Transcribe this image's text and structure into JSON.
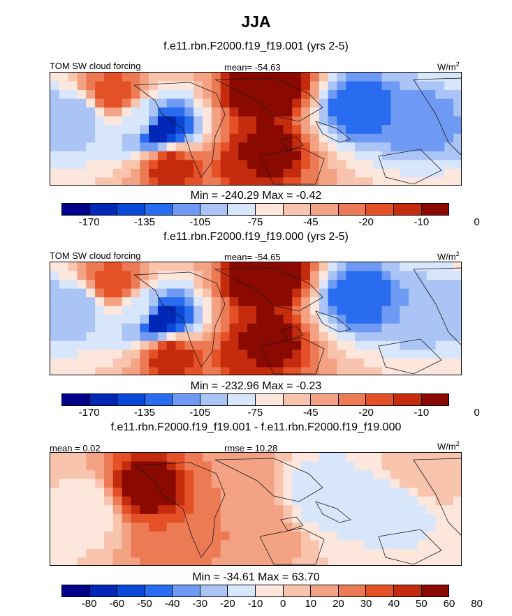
{
  "figure": {
    "title": "JJA",
    "subtitle": "f.e11.rbn.F2000.f19_f19.001 (yrs 2-5)"
  },
  "colors": {
    "ramp": [
      "#00008b",
      "#0027b5",
      "#0a48d8",
      "#2a6cf0",
      "#6f9af4",
      "#aac4f6",
      "#d8e6fb",
      "#fde6dc",
      "#f8c4ad",
      "#f3a283",
      "#ec7a55",
      "#e45126",
      "#c52b0d",
      "#8a0a02"
    ],
    "coast": "#1a1a1a"
  },
  "chart_data": [
    {
      "type": "heatmap",
      "panel": "top",
      "title": "f.e11.rbn.F2000.f19_f19.001 (yrs 2-5)",
      "left_label": "TOM SW cloud forcing",
      "center_label": "mean= -54.63",
      "units_base": "W/m",
      "units_exp": "2",
      "minmax_label": "Min = -240.29 Max =  -0.42",
      "min": -240.29,
      "max": -0.42,
      "mean": -54.63,
      "colorbar_levels": [
        -170,
        -155,
        -135,
        -120,
        -105,
        -90,
        -75,
        -60,
        -45,
        -30,
        -20,
        -15,
        -10,
        -5,
        0
      ],
      "tick_labels": [
        "-170",
        "-135",
        "-105",
        "-75",
        "-45",
        "-20",
        "-10",
        "0"
      ],
      "tick_levels": [
        -170,
        -135,
        -105,
        -75,
        -45,
        -20,
        -10,
        0
      ],
      "field": [
        {
          "lon": -125,
          "lat": 25,
          "value": -15
        },
        {
          "lon": -100,
          "lat": 5,
          "value": -75
        },
        {
          "lon": 0,
          "lat": 25,
          "value": -5
        },
        {
          "lon": 15,
          "lat": 30,
          "value": 0
        },
        {
          "lon": 90,
          "lat": 15,
          "value": -135
        },
        {
          "lon": 145,
          "lat": 5,
          "value": -120
        },
        {
          "lon": -160,
          "lat": 8,
          "value": -105
        },
        {
          "lon": -85,
          "lat": 0,
          "value": -170
        },
        {
          "lon": -75,
          "lat": -25,
          "value": -10
        },
        {
          "lon": 10,
          "lat": -15,
          "value": -5
        },
        {
          "lon": -5,
          "lat": -22,
          "value": -10
        }
      ]
    },
    {
      "type": "heatmap",
      "panel": "middle",
      "title": "f.e11.rbn.F2000.f19_f19.000 (yrs 2-5)",
      "left_label": "TOM SW cloud forcing",
      "center_label": "mean= -54.65",
      "units_base": "W/m",
      "units_exp": "2",
      "minmax_label": "Min = -232.96 Max =  -0.23",
      "min": -232.96,
      "max": -0.23,
      "mean": -54.65,
      "colorbar_levels": [
        -170,
        -155,
        -135,
        -120,
        -105,
        -90,
        -75,
        -60,
        -45,
        -30,
        -20,
        -15,
        -10,
        -5,
        0
      ],
      "tick_labels": [
        "-170",
        "-135",
        "-105",
        "-75",
        "-45",
        "-20",
        "-10",
        "0"
      ],
      "tick_levels": [
        -170,
        -135,
        -105,
        -75,
        -45,
        -20,
        -10,
        0
      ],
      "field": [
        {
          "lon": -125,
          "lat": 25,
          "value": -15
        },
        {
          "lon": -100,
          "lat": 5,
          "value": -75
        },
        {
          "lon": 0,
          "lat": 25,
          "value": -5
        },
        {
          "lon": 15,
          "lat": 30,
          "value": 0
        },
        {
          "lon": 90,
          "lat": 15,
          "value": -135
        },
        {
          "lon": 145,
          "lat": 5,
          "value": -105
        },
        {
          "lon": -160,
          "lat": 8,
          "value": -105
        },
        {
          "lon": -85,
          "lat": 0,
          "value": -170
        },
        {
          "lon": -75,
          "lat": -25,
          "value": -10
        },
        {
          "lon": 10,
          "lat": -15,
          "value": -5
        },
        {
          "lon": -5,
          "lat": -22,
          "value": -10
        }
      ]
    },
    {
      "type": "heatmap",
      "panel": "difference",
      "title": "f.e11.rbn.F2000.f19_f19.001 - f.e11.rbn.F2000.f19_f19.000",
      "left_label": "mean =   0.02",
      "center_label": "rmse =  10.28",
      "units_base": "W/m",
      "units_exp": "2",
      "minmax_label": "Min = -34.61 Max =  63.70",
      "min": -34.61,
      "max": 63.7,
      "mean": 0.02,
      "rmse": 10.28,
      "colorbar_levels": [
        -80,
        -60,
        -50,
        -40,
        -30,
        -20,
        -10,
        0,
        10,
        20,
        30,
        40,
        50,
        60,
        80
      ],
      "tick_labels": [
        "-80",
        "-60",
        "-50",
        "-40",
        "-30",
        "-20",
        "-10",
        "0",
        "10",
        "20",
        "30",
        "40",
        "50",
        "60",
        "80"
      ],
      "tick_levels": [
        -80,
        -60,
        -50,
        -40,
        -30,
        -20,
        -10,
        0,
        10,
        20,
        30,
        40,
        50,
        60,
        80
      ],
      "field": [
        {
          "lon": -95,
          "lat": 15,
          "value": 60
        },
        {
          "lon": -70,
          "lat": -20,
          "value": 30
        },
        {
          "lon": -20,
          "lat": 20,
          "value": 20
        },
        {
          "lon": 0,
          "lat": -15,
          "value": 20
        },
        {
          "lon": 60,
          "lat": 10,
          "value": -20
        },
        {
          "lon": 120,
          "lat": 0,
          "value": -20
        },
        {
          "lon": -150,
          "lat": 0,
          "value": -10
        },
        {
          "lon": 150,
          "lat": 25,
          "value": 10
        }
      ]
    }
  ]
}
